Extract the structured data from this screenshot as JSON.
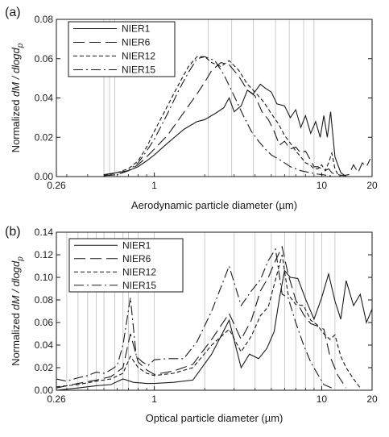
{
  "chart_data": [
    {
      "type": "line",
      "panel_label": "(a)",
      "xlabel": "Aerodynamic particle diameter (µm)",
      "ylabel": "Normalized dM / dlogd_p",
      "xscale": "log",
      "xlim": [
        0.26,
        20
      ],
      "ylim": [
        0,
        0.08
      ],
      "xticks": [
        {
          "v": 0.26,
          "label": "0.26"
        },
        {
          "v": 1,
          "label": "1"
        },
        {
          "v": 10,
          "label": "10"
        },
        {
          "v": 20,
          "label": "20"
        }
      ],
      "yticks": [
        {
          "v": 0,
          "label": "0.00"
        },
        {
          "v": 0.02,
          "label": "0.02"
        },
        {
          "v": 0.04,
          "label": "0.04"
        },
        {
          "v": 0.06,
          "label": "0.06"
        },
        {
          "v": 0.08,
          "label": "0.08"
        }
      ],
      "grid": "vertical lines at instrument size-bin boundaries",
      "gridlines": [
        0.5,
        0.54,
        0.58,
        2.1,
        2.9,
        3.9,
        5.3,
        6.4,
        7.8,
        9.0
      ],
      "legend": "top-left",
      "series": [
        {
          "name": "NIER1",
          "dash": "",
          "x": [
            0.5,
            0.55,
            0.6,
            0.7,
            0.8,
            0.9,
            1.0,
            1.2,
            1.5,
            1.8,
            2.0,
            2.3,
            2.6,
            2.8,
            3.0,
            3.3,
            3.6,
            3.9,
            4.3,
            4.6,
            5.0,
            5.4,
            6.0,
            6.5,
            7.0,
            7.5,
            8.0,
            8.6,
            9.2,
            9.8,
            10.3,
            10.8,
            11.3,
            12.0,
            13.0,
            14.0
          ],
          "values": [
            0.001,
            0.0015,
            0.002,
            0.003,
            0.005,
            0.008,
            0.011,
            0.017,
            0.024,
            0.028,
            0.029,
            0.032,
            0.035,
            0.04,
            0.033,
            0.036,
            0.044,
            0.042,
            0.047,
            0.045,
            0.043,
            0.037,
            0.036,
            0.03,
            0.034,
            0.025,
            0.031,
            0.022,
            0.028,
            0.02,
            0.031,
            0.02,
            0.033,
            0.01,
            0.002,
            0.0
          ]
        },
        {
          "name": "NIER6",
          "dash": "14 6",
          "x": [
            0.5,
            0.6,
            0.7,
            0.8,
            0.9,
            1.0,
            1.2,
            1.4,
            1.6,
            1.8,
            2.0,
            2.2,
            2.5,
            2.8,
            3.2,
            3.6,
            4.0,
            4.4,
            4.8,
            5.2,
            5.6,
            6.0,
            6.5,
            7.0,
            7.5,
            8.0,
            8.5,
            9.0,
            9.5,
            10.0,
            10.5,
            11.0,
            11.5,
            12.0,
            12.5,
            13.5,
            14.5,
            15.5,
            16.5,
            17.5,
            18.5,
            19.5
          ],
          "values": [
            0.0005,
            0.001,
            0.003,
            0.006,
            0.01,
            0.014,
            0.021,
            0.029,
            0.036,
            0.042,
            0.048,
            0.054,
            0.058,
            0.057,
            0.051,
            0.044,
            0.041,
            0.033,
            0.029,
            0.023,
            0.016,
            0.018,
            0.014,
            0.015,
            0.012,
            0.013,
            0.009,
            0.005,
            0.005,
            0.004,
            0.003,
            0.004,
            0.002,
            0.001,
            0.001,
            0.0005,
            0.001,
            0.006,
            0.002,
            0.007,
            0.005,
            0.009
          ]
        },
        {
          "name": "NIER12",
          "dash": "5 3",
          "x": [
            0.5,
            0.6,
            0.7,
            0.8,
            0.9,
            1.0,
            1.2,
            1.4,
            1.6,
            1.8,
            2.0,
            2.2,
            2.5,
            2.8,
            3.2,
            3.6,
            4.0,
            4.5,
            5.0,
            5.5,
            6.0,
            6.5,
            7.0,
            7.5,
            8.0,
            8.5,
            9.0,
            9.5,
            10.0,
            10.5,
            11.0,
            11.5,
            12.0,
            12.5,
            13.0
          ],
          "values": [
            0.0005,
            0.002,
            0.004,
            0.008,
            0.015,
            0.023,
            0.036,
            0.047,
            0.056,
            0.061,
            0.061,
            0.058,
            0.056,
            0.059,
            0.054,
            0.047,
            0.043,
            0.038,
            0.032,
            0.027,
            0.021,
            0.017,
            0.013,
            0.01,
            0.007,
            0.006,
            0.004,
            0.004,
            0.006,
            0.003,
            0.007,
            0.012,
            0.004,
            0.001,
            0.0
          ]
        },
        {
          "name": "NIER15",
          "dash": "12 4 2 4",
          "x": [
            0.5,
            0.6,
            0.7,
            0.8,
            0.9,
            1.0,
            1.2,
            1.4,
            1.6,
            1.8,
            2.0,
            2.3,
            2.6,
            3.0,
            3.4,
            3.8,
            4.2,
            4.6,
            5.0,
            5.5,
            6.0,
            6.5,
            7.0,
            7.5,
            8.0,
            8.5,
            9.0,
            10.0,
            11.0,
            12.0
          ],
          "values": [
            0.0005,
            0.001,
            0.003,
            0.007,
            0.013,
            0.019,
            0.032,
            0.044,
            0.053,
            0.06,
            0.061,
            0.059,
            0.052,
            0.041,
            0.031,
            0.023,
            0.018,
            0.014,
            0.011,
            0.009,
            0.007,
            0.005,
            0.004,
            0.003,
            0.0025,
            0.002,
            0.0015,
            0.001,
            0.0005,
            0.0
          ]
        }
      ]
    },
    {
      "type": "line",
      "panel_label": "(b)",
      "xlabel": "Optical particle diameter (µm)",
      "ylabel": "Normalized dM / dlogd_p",
      "xscale": "log",
      "xlim": [
        0.26,
        20
      ],
      "ylim": [
        0,
        0.14
      ],
      "xticks": [
        {
          "v": 0.26,
          "label": "0.26"
        },
        {
          "v": 1,
          "label": "1"
        },
        {
          "v": 10,
          "label": "10"
        },
        {
          "v": 20,
          "label": "20"
        }
      ],
      "yticks": [
        {
          "v": 0,
          "label": "0.00"
        },
        {
          "v": 0.02,
          "label": "0.02"
        },
        {
          "v": 0.04,
          "label": "0.04"
        },
        {
          "v": 0.06,
          "label": "0.06"
        },
        {
          "v": 0.08,
          "label": "0.08"
        },
        {
          "v": 0.1,
          "label": "0.10"
        },
        {
          "v": 0.12,
          "label": "0.12"
        },
        {
          "v": 0.14,
          "label": "0.14"
        }
      ],
      "grid": "vertical lines at instrument size-bin boundaries",
      "gridlines": [
        0.3,
        0.35,
        0.4,
        0.45,
        0.5,
        0.58,
        0.65,
        0.7,
        0.8,
        1.0,
        2.0,
        3.0,
        4.0,
        5.0,
        6.0,
        7.0,
        8.0,
        9.0,
        10.0,
        12.0
      ],
      "legend": "top-left",
      "series": [
        {
          "name": "NIER1",
          "dash": "",
          "x": [
            0.26,
            0.35,
            0.45,
            0.55,
            0.65,
            0.75,
            0.9,
            1.0,
            1.3,
            1.7,
            2.2,
            2.8,
            3.3,
            3.7,
            4.2,
            4.7,
            5.2,
            5.6,
            6.0,
            6.5,
            7.2,
            8.0,
            9.0,
            10.0,
            11.0,
            12.0,
            13.0,
            14.0,
            15.5,
            17.0,
            18.5,
            20.0
          ],
          "values": [
            0.0,
            0.002,
            0.004,
            0.005,
            0.01,
            0.007,
            0.006,
            0.006,
            0.007,
            0.009,
            0.032,
            0.062,
            0.02,
            0.032,
            0.028,
            0.037,
            0.052,
            0.082,
            0.106,
            0.1,
            0.099,
            0.081,
            0.063,
            0.082,
            0.103,
            0.079,
            0.063,
            0.097,
            0.075,
            0.085,
            0.06,
            0.072
          ]
        },
        {
          "name": "NIER6",
          "dash": "14 6",
          "x": [
            0.26,
            0.35,
            0.45,
            0.55,
            0.65,
            0.72,
            0.8,
            0.9,
            1.0,
            1.3,
            1.7,
            2.2,
            2.8,
            3.3,
            3.8,
            4.3,
            4.8,
            5.3,
            5.8,
            6.3,
            7.0,
            7.8,
            8.6,
            9.4,
            10.3,
            11.2,
            12.5,
            14.0
          ],
          "values": [
            0.002,
            0.006,
            0.009,
            0.012,
            0.02,
            0.05,
            0.025,
            0.018,
            0.014,
            0.017,
            0.023,
            0.045,
            0.068,
            0.045,
            0.062,
            0.088,
            0.1,
            0.115,
            0.127,
            0.103,
            0.08,
            0.067,
            0.059,
            0.057,
            0.054,
            0.03,
            0.013,
            0.002
          ]
        },
        {
          "name": "NIER12",
          "dash": "5 3",
          "x": [
            0.26,
            0.35,
            0.45,
            0.55,
            0.65,
            0.72,
            0.8,
            0.9,
            1.0,
            1.3,
            1.7,
            2.2,
            2.8,
            3.3,
            3.8,
            4.3,
            4.8,
            5.3,
            5.8,
            6.3,
            7.0,
            7.8,
            8.6,
            9.4,
            10.3,
            11.2,
            12.0,
            13.0,
            14.0,
            15.5,
            17.0
          ],
          "values": [
            0.003,
            0.005,
            0.008,
            0.01,
            0.015,
            0.03,
            0.02,
            0.015,
            0.013,
            0.015,
            0.02,
            0.04,
            0.054,
            0.034,
            0.048,
            0.066,
            0.074,
            0.098,
            0.12,
            0.085,
            0.076,
            0.075,
            0.062,
            0.058,
            0.05,
            0.045,
            0.049,
            0.03,
            0.02,
            0.01,
            0.002
          ]
        },
        {
          "name": "NIER15",
          "dash": "12 4 2 4",
          "x": [
            0.26,
            0.3,
            0.35,
            0.4,
            0.45,
            0.5,
            0.55,
            0.6,
            0.65,
            0.72,
            0.78,
            0.85,
            0.92,
            1.0,
            1.2,
            1.5,
            1.8,
            2.2,
            2.8,
            3.3,
            3.8,
            4.3,
            4.8,
            5.3,
            5.8,
            6.3,
            7.0,
            7.8,
            8.6,
            9.4,
            10.3,
            11.5
          ],
          "values": [
            0.01,
            0.008,
            0.011,
            0.013,
            0.016,
            0.015,
            0.018,
            0.022,
            0.04,
            0.082,
            0.03,
            0.025,
            0.022,
            0.027,
            0.028,
            0.028,
            0.043,
            0.07,
            0.11,
            0.075,
            0.088,
            0.098,
            0.115,
            0.125,
            0.085,
            0.082,
            0.06,
            0.04,
            0.025,
            0.015,
            0.005,
            0.002
          ]
        }
      ]
    }
  ]
}
